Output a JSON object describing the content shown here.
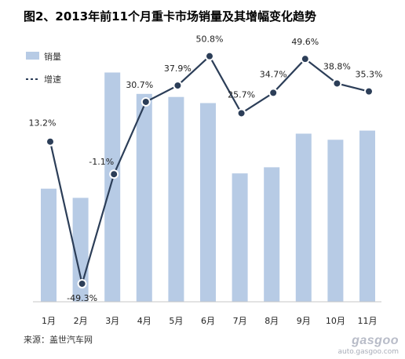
{
  "title": "图2、2013年前11个月重卡市场销量及其增幅变化趋势",
  "source": "来源：盖世汽车网",
  "watermark": {
    "brand": "gasgoo",
    "url": "auto.gasgoo.com"
  },
  "colors": {
    "bar": "#b7cbe5",
    "line": "#2c3e58",
    "marker_fill": "#2c3e58",
    "marker_stroke": "#ffffff"
  },
  "chart_data": {
    "type": "bar",
    "categories": [
      "1月",
      "2月",
      "3月",
      "4月",
      "5月",
      "6月",
      "7月",
      "8月",
      "9月",
      "10月",
      "11月"
    ],
    "legend_placement": "top-left",
    "grid": false,
    "series": [
      {
        "name": "销量",
        "type": "bar",
        "values": [
          37,
          34,
          75,
          68,
          67,
          65,
          42,
          44,
          55,
          53,
          56
        ]
      },
      {
        "name": "增速",
        "type": "line",
        "unit": "%",
        "values": [
          13.2,
          -49.3,
          -1.1,
          30.7,
          37.9,
          50.8,
          25.7,
          34.7,
          49.6,
          38.8,
          35.3
        ],
        "labels": [
          "13.2%",
          "-49.3%",
          "-1.1%",
          "30.7%",
          "37.9%",
          "50.8%",
          "25.7%",
          "34.7%",
          "49.6%",
          "38.8%",
          "35.3%"
        ]
      }
    ]
  }
}
